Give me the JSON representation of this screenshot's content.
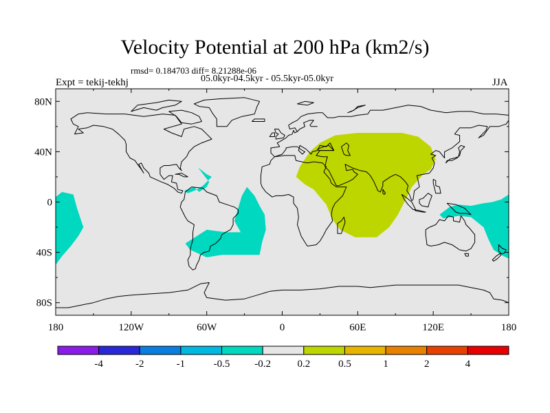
{
  "title": "Velocity Potential at 200 hPa (km2/s)",
  "stats_line": "rmsd= 0.184703 diff= 8.21288e-06",
  "period_line": "05.0kyr-04.5kyr - 05.5kyr-05.0kyr",
  "left_label": "Expt = tekij-tekhj",
  "right_label": "JJA",
  "axes": {
    "lon_range": [
      -180,
      180
    ],
    "lat_range": [
      -90,
      90
    ],
    "lat_ticks": [
      {
        "value": 80,
        "label": "80N"
      },
      {
        "value": 40,
        "label": "40N"
      },
      {
        "value": 0,
        "label": "0"
      },
      {
        "value": -40,
        "label": "40S"
      },
      {
        "value": -80,
        "label": "80S"
      }
    ],
    "lon_ticks": [
      {
        "value": -180,
        "label": "180"
      },
      {
        "value": -120,
        "label": "120W"
      },
      {
        "value": -60,
        "label": "60W"
      },
      {
        "value": 0,
        "label": "0"
      },
      {
        "value": 60,
        "label": "60E"
      },
      {
        "value": 120,
        "label": "120E"
      },
      {
        "value": 180,
        "label": "180"
      }
    ]
  },
  "colors": {
    "background_field": "#e6e6e6",
    "negative_anomaly": "#00d8c0",
    "positive_anomaly": "#bed600",
    "coastline": "#000000"
  },
  "colorbar": {
    "labels": [
      "-4",
      "-2",
      "-1",
      "-0.5",
      "-0.2",
      "0.2",
      "0.5",
      "1",
      "2",
      "4"
    ],
    "colors": [
      "#8a1ce8",
      "#2828d8",
      "#0a7ee0",
      "#00b8e0",
      "#00d8c0",
      "#e6e6e6",
      "#bed600",
      "#e8b400",
      "#e88000",
      "#e84000",
      "#e80000"
    ]
  },
  "chart_data": {
    "type": "heatmap",
    "title": "Velocity Potential at 200 hPa (km2/s)",
    "projection": "cylindrical equidistant",
    "lon_range": [
      -180,
      180
    ],
    "lat_range": [
      -90,
      90
    ],
    "contour_levels": [
      -4,
      -2,
      -1,
      -0.5,
      -0.2,
      0.2,
      0.5,
      1,
      2,
      4
    ],
    "regions": [
      {
        "level": "0.2 to 0.5",
        "sign": "positive",
        "polygon_lonlat": [
          [
            11,
            20
          ],
          [
            14,
            28
          ],
          [
            22,
            40
          ],
          [
            30,
            47
          ],
          [
            42,
            53
          ],
          [
            60,
            55
          ],
          [
            80,
            55
          ],
          [
            95,
            55
          ],
          [
            108,
            52
          ],
          [
            118,
            44
          ],
          [
            122,
            34
          ],
          [
            118,
            26
          ],
          [
            112,
            22
          ],
          [
            103,
            12
          ],
          [
            98,
            2
          ],
          [
            92,
            -10
          ],
          [
            85,
            -20
          ],
          [
            75,
            -28
          ],
          [
            58,
            -28
          ],
          [
            46,
            -22
          ],
          [
            40,
            -14
          ],
          [
            35,
            -2
          ],
          [
            30,
            4
          ],
          [
            25,
            10
          ],
          [
            18,
            14
          ]
        ]
      },
      {
        "level": "-0.5 to -0.2",
        "sign": "negative",
        "polygon_lonlat": [
          [
            -33,
            -24
          ],
          [
            -45,
            -24
          ],
          [
            -60,
            -22
          ],
          [
            -77,
            -33
          ],
          [
            -73,
            -38
          ],
          [
            -60,
            -44
          ],
          [
            -48,
            -42
          ],
          [
            -35,
            -42
          ],
          [
            -18,
            -42
          ],
          [
            -16,
            -32
          ],
          [
            -13,
            -22
          ],
          [
            -14,
            -10
          ],
          [
            -18,
            -3
          ],
          [
            -22,
            5
          ],
          [
            -28,
            12
          ],
          [
            -32,
            5
          ],
          [
            -36,
            -8
          ],
          [
            -38,
            -15
          ]
        ]
      },
      {
        "level": "-0.5 to -0.2",
        "sign": "negative",
        "polygon_lonlat": [
          [
            -56,
            20
          ],
          [
            -60,
            22
          ],
          [
            -65,
            26
          ],
          [
            -67,
            27
          ],
          [
            -65,
            25
          ],
          [
            -62,
            21
          ],
          [
            -58,
            16
          ],
          [
            -60,
            12
          ],
          [
            -66,
            8
          ],
          [
            -68,
            10
          ],
          [
            -70,
            12
          ],
          [
            -72,
            11
          ],
          [
            -75,
            10
          ],
          [
            -78,
            9
          ],
          [
            -75,
            7
          ],
          [
            -70,
            9
          ],
          [
            -66,
            11
          ],
          [
            -63,
            13
          ]
        ]
      },
      {
        "level": "-0.5 to -0.2",
        "sign": "negative",
        "polygon_lonlat": [
          [
            -180,
            4
          ],
          [
            -175,
            8
          ],
          [
            -166,
            6
          ],
          [
            -163,
            -5
          ],
          [
            -158,
            -20
          ],
          [
            -162,
            -27
          ],
          [
            -168,
            -35
          ],
          [
            -175,
            -43
          ],
          [
            -180,
            -50
          ]
        ]
      },
      {
        "level": "-0.5 to -0.2",
        "sign": "negative",
        "polygon_lonlat": [
          [
            180,
            6
          ],
          [
            174,
            2
          ],
          [
            167,
            0
          ],
          [
            160,
            -1
          ],
          [
            150,
            -3
          ],
          [
            140,
            -2
          ],
          [
            133,
            -4
          ],
          [
            125,
            -10
          ],
          [
            128,
            -13
          ],
          [
            140,
            -11
          ],
          [
            150,
            -12
          ],
          [
            160,
            -20
          ],
          [
            164,
            -30
          ],
          [
            168,
            -38
          ],
          [
            174,
            -42
          ],
          [
            180,
            -45
          ]
        ]
      }
    ],
    "colorbar": {
      "labels": [
        "-4",
        "-2",
        "-1",
        "-0.5",
        "-0.2",
        "0.2",
        "0.5",
        "1",
        "2",
        "4"
      ]
    }
  }
}
